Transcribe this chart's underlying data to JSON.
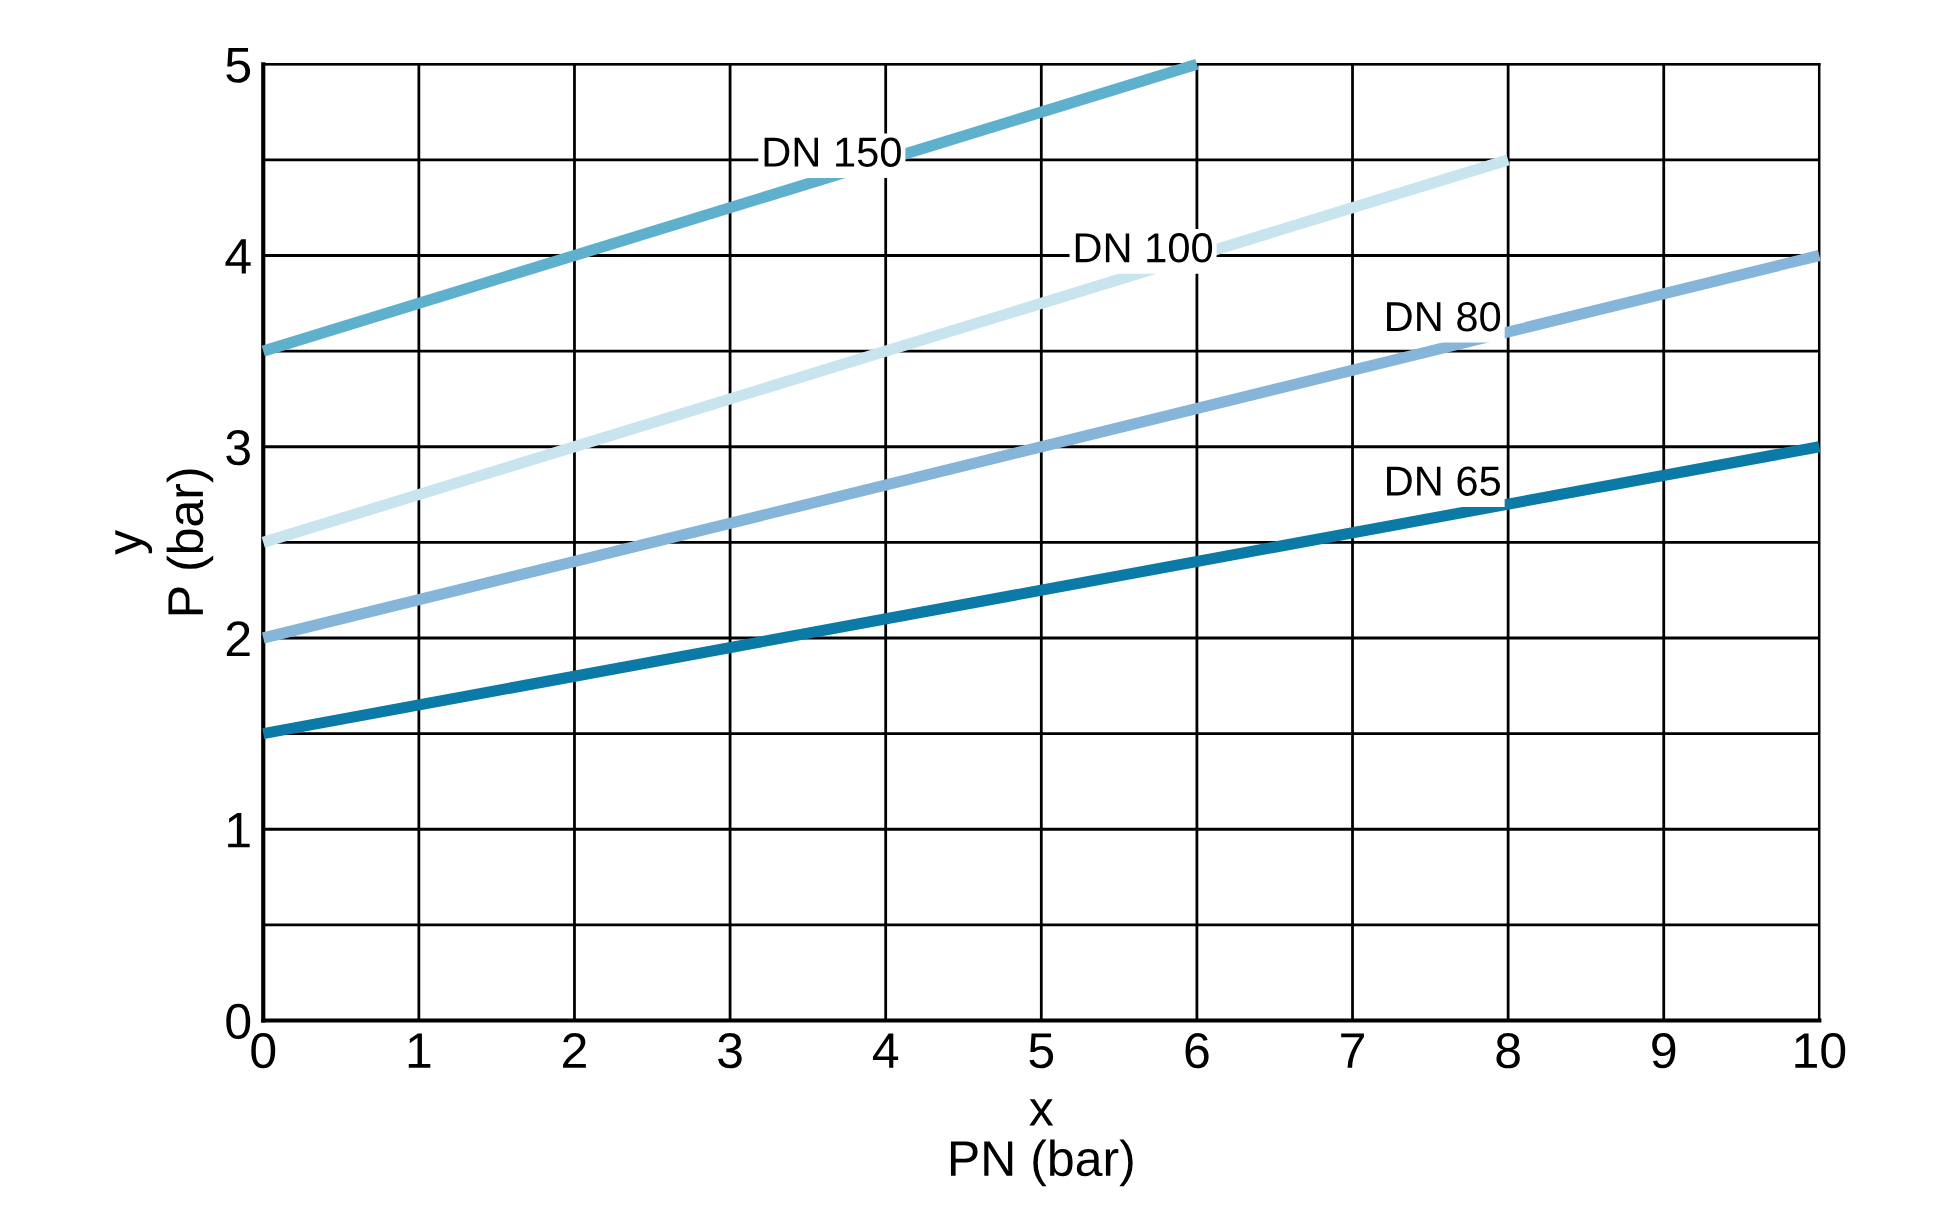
{
  "chart_data": {
    "type": "line",
    "xlabel": "x\nPN (bar)",
    "ylabel": "y\nP (bar)",
    "series": [
      {
        "name": "DN 150",
        "color": "#5fb0cd",
        "x": [
          0,
          6
        ],
        "values": [
          3.5,
          5
        ]
      },
      {
        "name": "DN 100",
        "color": "#c8e4ef",
        "x": [
          0,
          8
        ],
        "values": [
          2.5,
          4.5
        ]
      },
      {
        "name": "DN 80",
        "color": "#85b5d8",
        "x": [
          0,
          10
        ],
        "values": [
          2,
          4
        ]
      },
      {
        "name": "DN 65",
        "color": "#0b7aa6",
        "x": [
          0,
          10
        ],
        "values": [
          1.5,
          3
        ]
      }
    ],
    "xlim": [
      0,
      10
    ],
    "ylim": [
      0,
      5
    ],
    "xticks": [
      0,
      1,
      2,
      3,
      4,
      5,
      6,
      7,
      8,
      9,
      10
    ],
    "yticks": [
      0,
      {
        "value": 0.5,
        "label": null
      },
      1,
      {
        "value": 1.5,
        "label": null
      },
      2,
      {
        "value": 2.5,
        "label": null
      },
      3,
      {
        "value": 3.5,
        "label": null
      },
      4,
      {
        "value": 4.5,
        "label": null
      },
      5
    ],
    "grid": true,
    "legend": false,
    "marker": "none",
    "line_style": "solid"
  }
}
